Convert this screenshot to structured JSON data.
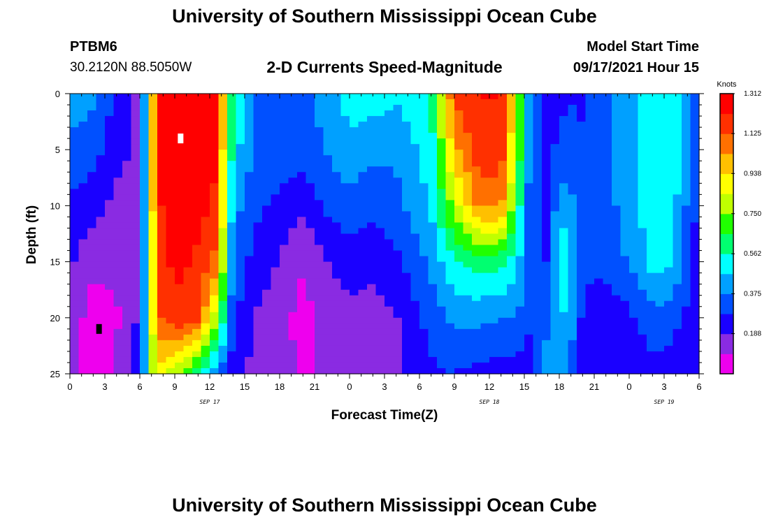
{
  "header": {
    "title": "University of Southern Mississippi Ocean Cube",
    "station_id": "PTBM6",
    "coordinates": "30.2120N  88.5050W",
    "subtitle": "2-D Currents Speed-Magnitude",
    "model_start_label": "Model Start Time",
    "model_start_value": "09/17/2021 Hour 15"
  },
  "footer": {
    "title": "University of Southern Mississippi Ocean Cube"
  },
  "chart_data": {
    "type": "heatmap",
    "title": "2-D Currents Speed-Magnitude",
    "xlabel": "Forecast Time(Z)",
    "ylabel": "Depth (ft)",
    "x_unit": "hours since 00Z Sep 17",
    "xlim": [
      0,
      54
    ],
    "ylim": [
      0,
      25
    ],
    "x_tick_values": [
      0,
      3,
      6,
      9,
      12,
      15,
      18,
      21,
      24,
      27,
      30,
      33,
      36,
      39,
      42,
      45,
      48,
      51,
      54
    ],
    "x_tick_labels": [
      "0",
      "3",
      "6",
      "9",
      "12",
      "15",
      "18",
      "21",
      "0",
      "3",
      "6",
      "9",
      "12",
      "15",
      "18",
      "21",
      "0",
      "3",
      "6"
    ],
    "y_tick_values": [
      0,
      5,
      10,
      15,
      20,
      25
    ],
    "y_tick_labels": [
      "0",
      "5",
      "10",
      "15",
      "20",
      "25"
    ],
    "day_labels": [
      {
        "label": "SEP 17",
        "x": 12
      },
      {
        "label": "SEP 18",
        "x": 36
      },
      {
        "label": "SEP 19",
        "x": 51
      }
    ],
    "colorbar": {
      "unit": "Knots",
      "min": 0,
      "max": 1.312,
      "tick_labels": [
        "1.312",
        "1.125",
        "0.938",
        "0.750",
        "0.562",
        "0.375",
        "0.188"
      ],
      "tick_values": [
        1.312,
        1.125,
        0.938,
        0.75,
        0.562,
        0.375,
        0.188
      ],
      "colors": [
        "#ee00ee",
        "#8a2be2",
        "#1a00ff",
        "#0050ff",
        "#00a0ff",
        "#00ffff",
        "#00ff70",
        "#20ff00",
        "#c0ff00",
        "#ffff00",
        "#ffc000",
        "#ff7000",
        "#ff3000",
        "#ff0000"
      ]
    },
    "time_grid": [
      0,
      2,
      4,
      6,
      7.5,
      9,
      11,
      12.5,
      14,
      16,
      18,
      20,
      22,
      24,
      26,
      28,
      31,
      33,
      35,
      37,
      38.5,
      39.5,
      41,
      42,
      43,
      44,
      45,
      46.5,
      48,
      49,
      50,
      51,
      52,
      53,
      54
    ],
    "depth_profiles": [
      {
        "x": 0,
        "knots": [
          0.42,
          0.36,
          0.26,
          0.2,
          0.16,
          0.16
        ]
      },
      {
        "x": 2,
        "knots": [
          0.4,
          0.32,
          0.22,
          0.12,
          0.04,
          0.03
        ]
      },
      {
        "x": 4,
        "knots": [
          0.26,
          0.22,
          0.16,
          0.12,
          0.08,
          0.1
        ]
      },
      {
        "x": 6,
        "knots": [
          0.16,
          0.16,
          0.16,
          0.18,
          0.2,
          0.3
        ]
      },
      {
        "x": 7.5,
        "knots": [
          1.2,
          1.22,
          1.2,
          1.15,
          1.1,
          0.9
        ]
      },
      {
        "x": 9,
        "knots": [
          1.28,
          1.3,
          1.28,
          1.25,
          1.2,
          0.8
        ]
      },
      {
        "x": 11,
        "knots": [
          1.28,
          1.28,
          1.25,
          1.2,
          1.15,
          0.6
        ]
      },
      {
        "x": 12.5,
        "knots": [
          1.26,
          1.24,
          1.2,
          1.1,
          0.8,
          0.4
        ]
      },
      {
        "x": 14,
        "knots": [
          0.6,
          0.52,
          0.42,
          0.36,
          0.3,
          0.22
        ]
      },
      {
        "x": 16,
        "knots": [
          0.36,
          0.34,
          0.3,
          0.24,
          0.18,
          0.15
        ]
      },
      {
        "x": 18,
        "knots": [
          0.34,
          0.32,
          0.26,
          0.18,
          0.13,
          0.12
        ]
      },
      {
        "x": 20,
        "knots": [
          0.36,
          0.34,
          0.2,
          0.1,
          0.06,
          0.08
        ]
      },
      {
        "x": 22,
        "knots": [
          0.4,
          0.38,
          0.3,
          0.18,
          0.12,
          0.12
        ]
      },
      {
        "x": 24,
        "knots": [
          0.52,
          0.44,
          0.34,
          0.24,
          0.16,
          0.14
        ]
      },
      {
        "x": 26,
        "knots": [
          0.52,
          0.4,
          0.3,
          0.22,
          0.14,
          0.12
        ]
      },
      {
        "x": 28,
        "knots": [
          0.48,
          0.4,
          0.34,
          0.26,
          0.18,
          0.16
        ]
      },
      {
        "x": 31,
        "knots": [
          0.56,
          0.52,
          0.48,
          0.4,
          0.32,
          0.26
        ]
      },
      {
        "x": 33,
        "knots": [
          1.15,
          1.0,
          0.8,
          0.55,
          0.4,
          0.28
        ]
      },
      {
        "x": 35,
        "knots": [
          1.22,
          1.18,
          1.05,
          0.6,
          0.4,
          0.25
        ]
      },
      {
        "x": 37,
        "knots": [
          1.22,
          1.2,
          1.05,
          0.6,
          0.38,
          0.24
        ]
      },
      {
        "x": 38.5,
        "knots": [
          0.8,
          0.72,
          0.6,
          0.48,
          0.36,
          0.24
        ]
      },
      {
        "x": 39.5,
        "knots": [
          0.4,
          0.36,
          0.32,
          0.3,
          0.28,
          0.26
        ]
      },
      {
        "x": 41,
        "knots": [
          0.24,
          0.26,
          0.24,
          0.28,
          0.36,
          0.42
        ]
      },
      {
        "x": 42,
        "knots": [
          0.26,
          0.3,
          0.44,
          0.58,
          0.5,
          0.42
        ]
      },
      {
        "x": 43,
        "knots": [
          0.28,
          0.3,
          0.4,
          0.48,
          0.4,
          0.38
        ]
      },
      {
        "x": 44,
        "knots": [
          0.26,
          0.3,
          0.32,
          0.34,
          0.26,
          0.26
        ]
      },
      {
        "x": 45,
        "knots": [
          0.3,
          0.32,
          0.32,
          0.3,
          0.22,
          0.2
        ]
      },
      {
        "x": 46.5,
        "knots": [
          0.38,
          0.38,
          0.36,
          0.34,
          0.22,
          0.2
        ]
      },
      {
        "x": 48,
        "knots": [
          0.44,
          0.44,
          0.42,
          0.38,
          0.26,
          0.2
        ]
      },
      {
        "x": 49,
        "knots": [
          0.48,
          0.48,
          0.48,
          0.44,
          0.3,
          0.22
        ]
      },
      {
        "x": 50,
        "knots": [
          0.52,
          0.52,
          0.52,
          0.5,
          0.34,
          0.24
        ]
      },
      {
        "x": 51,
        "knots": [
          0.54,
          0.54,
          0.52,
          0.5,
          0.36,
          0.24
        ]
      },
      {
        "x": 52,
        "knots": [
          0.5,
          0.5,
          0.48,
          0.44,
          0.3,
          0.22
        ]
      },
      {
        "x": 53,
        "knots": [
          0.38,
          0.38,
          0.36,
          0.32,
          0.26,
          0.2
        ]
      },
      {
        "x": 54,
        "knots": [
          0.24,
          0.24,
          0.24,
          0.24,
          0.22,
          0.2
        ]
      }
    ],
    "profile_depths": [
      0,
      5,
      10,
      15,
      20,
      25
    ],
    "markers": [
      {
        "name": "max-speed-marker",
        "x": 9.5,
        "depth": 4,
        "color": "#ffffff"
      },
      {
        "name": "min-speed-marker",
        "x": 2.5,
        "depth": 21,
        "color": "#000000"
      }
    ]
  }
}
